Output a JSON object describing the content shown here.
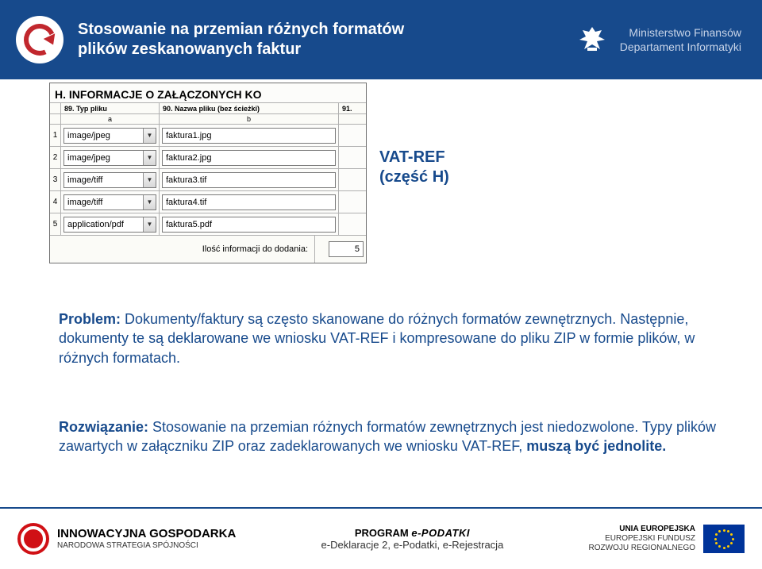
{
  "header": {
    "title_line1": "Stosowanie na przemian różnych formatów",
    "title_line2": "plików zeskanowanych faktur",
    "ministry_line1": "Ministerstwo Finansów",
    "ministry_line2": "Departament Informatyki"
  },
  "panel": {
    "title": "H. INFORMACJE O ZAŁĄCZONYCH KO",
    "col89": "89. Typ pliku",
    "col90": "90. Nazwa pliku (bez ścieżki)",
    "col91": "91.",
    "sub_a": "a",
    "sub_b": "b",
    "rows": [
      {
        "idx": "1",
        "type": "image/jpeg",
        "file": "faktura1.jpg"
      },
      {
        "idx": "2",
        "type": "image/jpeg",
        "file": "faktura2.jpg"
      },
      {
        "idx": "3",
        "type": "image/tiff",
        "file": "faktura3.tif"
      },
      {
        "idx": "4",
        "type": "image/tiff",
        "file": "faktura4.tif"
      },
      {
        "idx": "5",
        "type": "application/pdf",
        "file": "faktura5.pdf"
      }
    ],
    "footer_label": "Ilość informacji do dodania:",
    "footer_value": "5"
  },
  "vat_label_line1": "VAT-REF",
  "vat_label_line2": "(część H)",
  "problem": {
    "lead": "Problem: ",
    "text": "Dokumenty/faktury są często skanowane do różnych formatów zewnętrznych. Następnie, dokumenty te są deklarowane we wniosku VAT-REF i kompresowane do pliku ZIP w formie plików, w różnych formatach."
  },
  "solution": {
    "lead": "Rozwiązanie: ",
    "text1": "Stosowanie na przemian różnych formatów zewnętrznych jest niedozwolone. Typy plików zawartych w załączniku ZIP oraz zadeklarowanych we wniosku VAT-REF, ",
    "bold": "muszą być jednolite.",
    "text2": ""
  },
  "footer": {
    "ig_line1": "INNOWACYJNA GOSPODARKA",
    "ig_line2": "NARODOWA STRATEGIA SPÓJNOŚCI",
    "program_top_prefix": "PROGRAM ",
    "program_top_main": "e-PODATKI",
    "program_bottom": "e-Deklaracje 2, e-Podatki, e-Rejestracja",
    "eu_line1": "UNIA EUROPEJSKA",
    "eu_line2": "EUROPEJSKI FUNDUSZ",
    "eu_line3": "ROZWOJU REGIONALNEGO"
  },
  "colors": {
    "header_bg": "#174a8c",
    "accent_red": "#c1272d",
    "text_blue": "#174a8c"
  }
}
